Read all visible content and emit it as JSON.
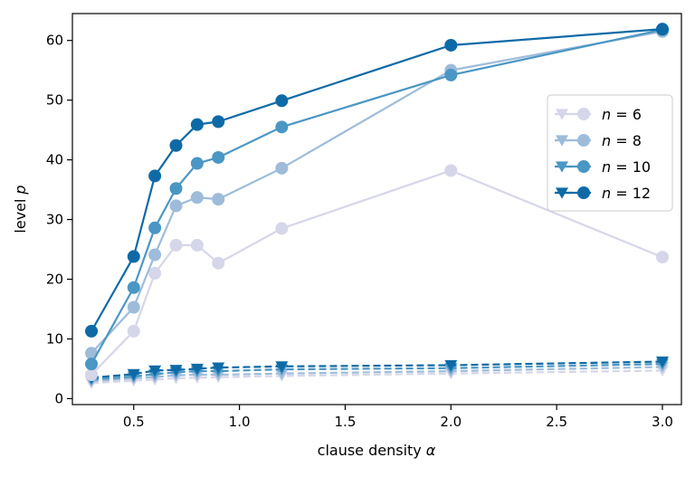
{
  "chart_data": {
    "type": "line",
    "title": "",
    "xlabel": "clause density",
    "xlabel_symbol": "α",
    "ylabel": "level",
    "ylabel_symbol": "p",
    "xlim": [
      0.21,
      3.09
    ],
    "ylim": [
      -1.0,
      64.5
    ],
    "xticks": [
      0.5,
      1.0,
      1.5,
      2.0,
      2.5,
      3.0
    ],
    "xtick_labels": [
      "0.5",
      "1.0",
      "1.5",
      "2.0",
      "2.5",
      "3.0"
    ],
    "yticks": [
      0,
      10,
      20,
      30,
      40,
      50,
      60
    ],
    "ytick_labels": [
      "0",
      "10",
      "20",
      "30",
      "40",
      "50",
      "60"
    ],
    "grid": false,
    "legend_position": "right",
    "x": [
      0.3,
      0.5,
      0.6,
      0.7,
      0.8,
      0.9,
      1.2,
      2.0,
      3.0
    ],
    "series": [
      {
        "name": "n = 6",
        "label_var": "n",
        "label_value": "6",
        "color": "#d6d6ea",
        "solid_marker": "circle",
        "dashed_marker": "triangle-down",
        "solid": [
          4.0,
          11.3,
          21.0,
          25.7,
          25.7,
          22.7,
          28.5,
          38.2,
          23.7
        ],
        "dashed": [
          2.6,
          3.0,
          3.2,
          3.4,
          3.5,
          3.6,
          3.8,
          4.2,
          4.7
        ]
      },
      {
        "name": "n = 8",
        "label_var": "n",
        "label_value": "8",
        "color": "#9ebcda",
        "solid_marker": "circle",
        "dashed_marker": "triangle-down",
        "solid": [
          7.6,
          15.3,
          24.1,
          32.3,
          33.7,
          33.4,
          38.6,
          55.0,
          61.5
        ],
        "dashed": [
          2.9,
          3.4,
          3.6,
          3.9,
          4.0,
          4.0,
          4.2,
          4.6,
          5.3
        ]
      },
      {
        "name": "n = 10",
        "label_var": "n",
        "label_value": "10",
        "color": "#4a96c4",
        "solid_marker": "circle",
        "dashed_marker": "triangle-down",
        "solid": [
          5.8,
          18.6,
          28.6,
          35.2,
          39.4,
          40.4,
          45.5,
          54.2,
          61.8
        ],
        "dashed": [
          3.2,
          3.7,
          4.1,
          4.4,
          4.6,
          4.6,
          4.9,
          5.1,
          5.8
        ]
      },
      {
        "name": "n = 12",
        "label_var": "n",
        "label_value": "12",
        "color": "#0e6aa6",
        "solid_marker": "circle",
        "dashed_marker": "triangle-down",
        "solid": [
          11.3,
          23.8,
          37.3,
          42.4,
          45.9,
          46.4,
          49.9,
          59.2,
          61.9
        ],
        "dashed": [
          3.5,
          4.1,
          4.7,
          4.8,
          5.0,
          5.2,
          5.4,
          5.6,
          6.2
        ]
      }
    ]
  }
}
